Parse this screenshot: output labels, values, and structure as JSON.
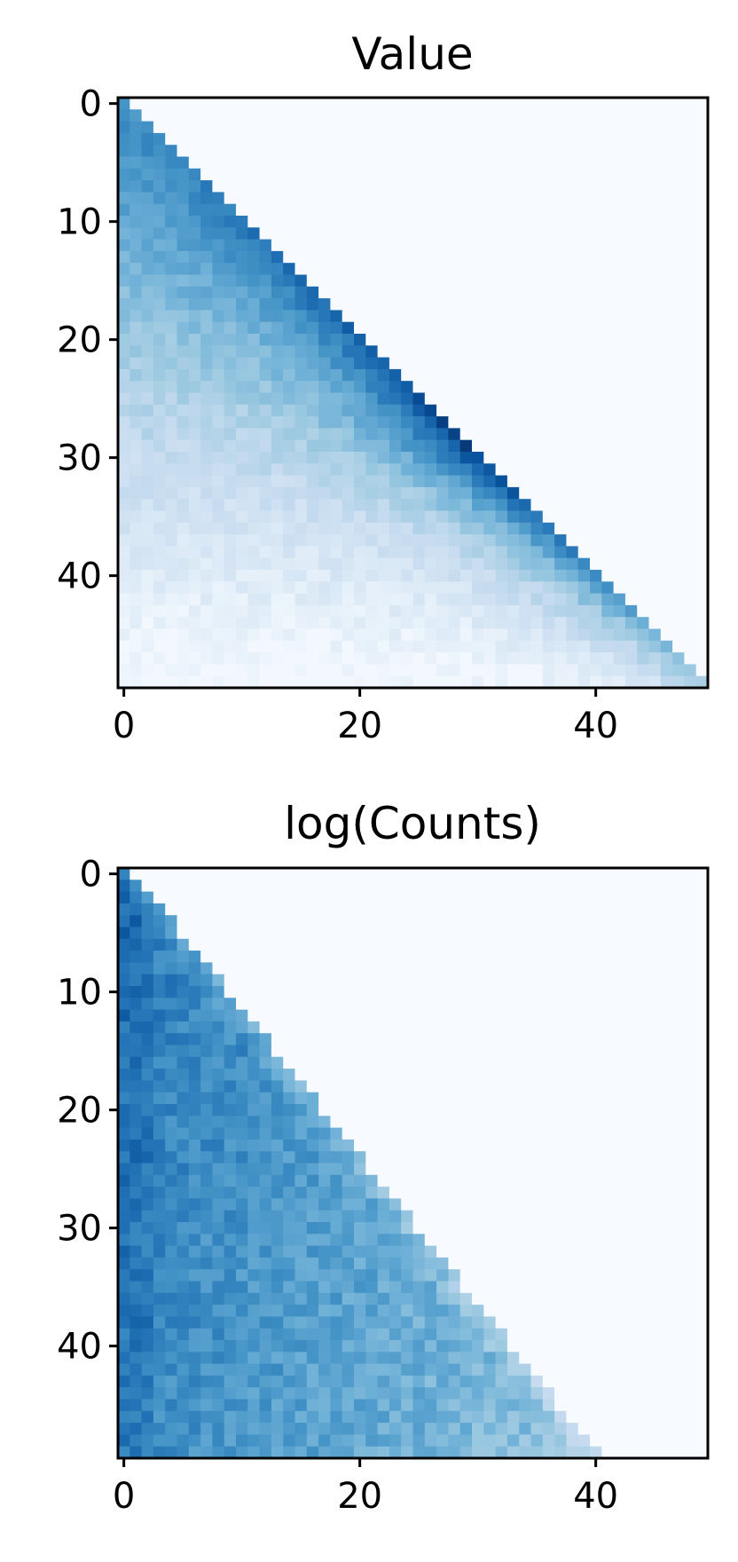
{
  "colormap": {
    "name": "Blues",
    "stops": [
      "#f7fbff",
      "#deebf7",
      "#c6dbef",
      "#9ecae1",
      "#6baed6",
      "#4292c6",
      "#2171b5",
      "#08519c",
      "#08306b"
    ]
  },
  "chart_data": [
    {
      "type": "heatmap",
      "title": "Value",
      "grid_size": 50,
      "xlim": [
        0,
        49
      ],
      "ylim": [
        49,
        0
      ],
      "x_ticks": [
        0,
        20,
        40
      ],
      "y_ticks": [
        0,
        10,
        20,
        30,
        40
      ],
      "grid": false,
      "legend": "none",
      "colormap": "Blues",
      "pattern": "lower-triangle",
      "description_of_values": "Non-zero only where col <= row; strongest along the diagonal peaking near row 25-30; decays toward bottom-left; upper triangle is zero"
    },
    {
      "type": "heatmap",
      "title": "log(Counts)",
      "grid_size": 50,
      "xlim": [
        0,
        49
      ],
      "ylim": [
        49,
        0
      ],
      "x_ticks": [
        0,
        20,
        40
      ],
      "y_ticks": [
        0,
        10,
        20,
        30,
        40
      ],
      "grid": false,
      "legend": "none",
      "colormap": "Blues",
      "pattern": "lower-curved-region",
      "description_of_values": "Non-zero only in a curved region below the diagonal (col below roughly 0.83*row); highest values at the left edge and near top-left; upper region is zero"
    }
  ]
}
